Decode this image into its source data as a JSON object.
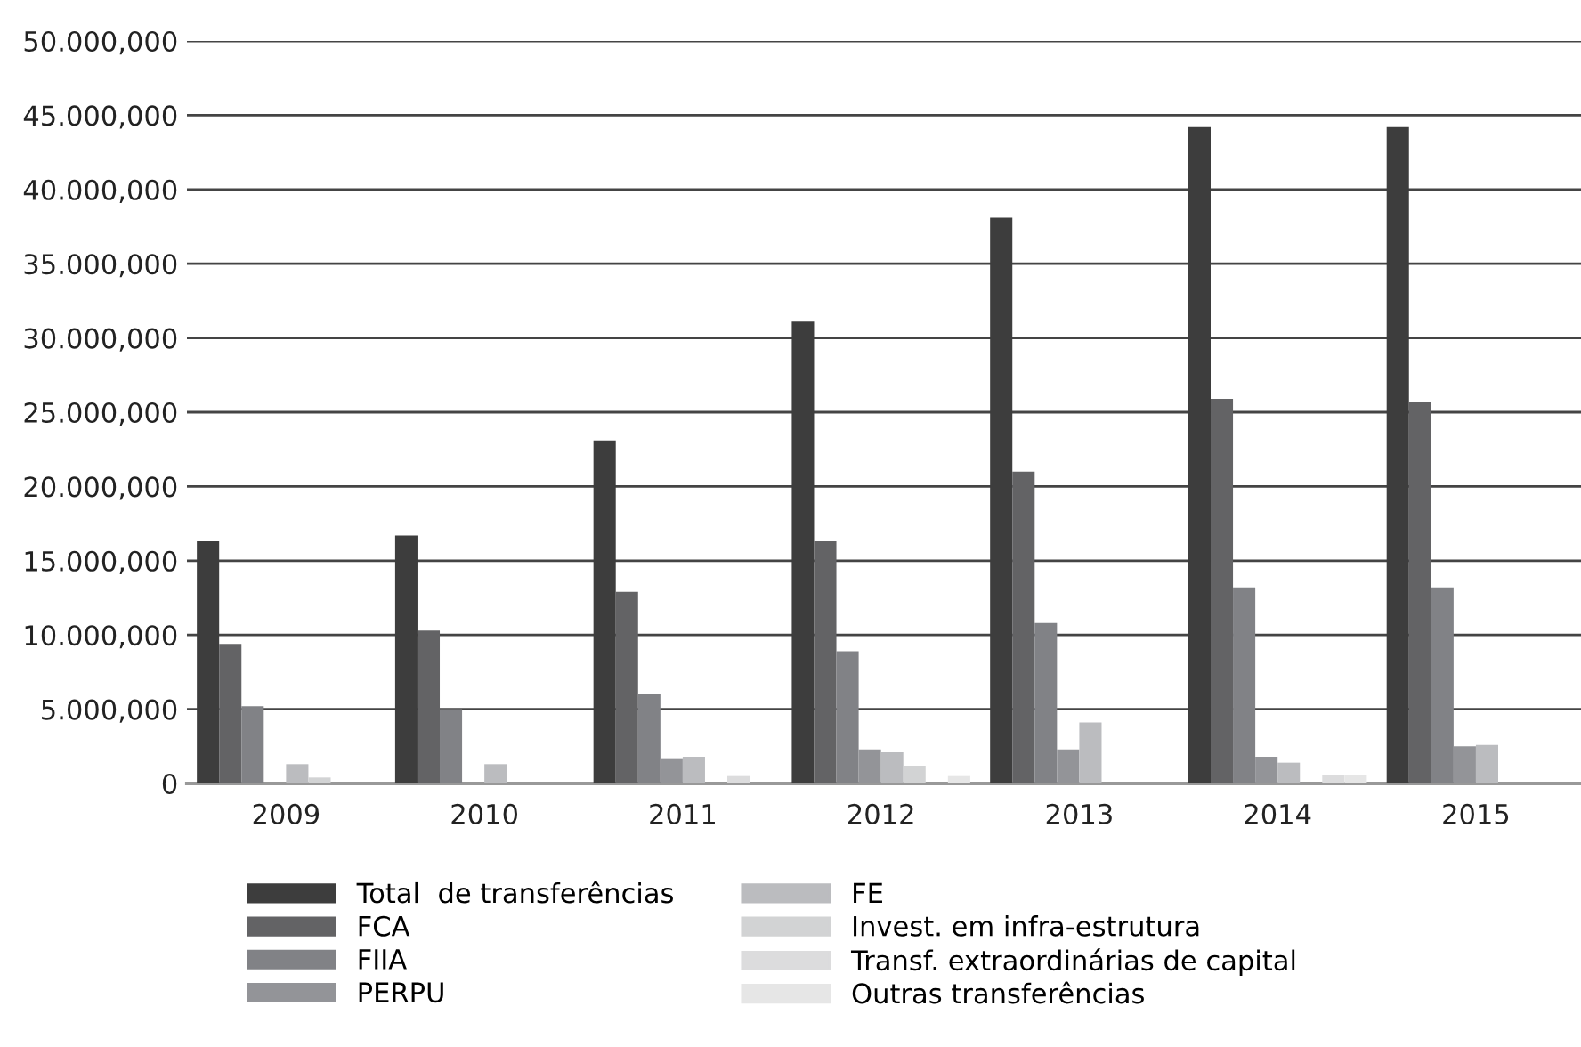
{
  "chart_data": {
    "type": "bar",
    "categories": [
      "2009",
      "2010",
      "2011",
      "2012",
      "2013",
      "2014",
      "2015"
    ],
    "series": [
      {
        "name": "Total  de transferências",
        "color": "#3d3d3d",
        "values": [
          16300,
          16700,
          23100,
          31100,
          38100,
          44200,
          44200
        ]
      },
      {
        "name": "FCA",
        "color": "#636365",
        "values": [
          9400,
          10300,
          12900,
          16300,
          21000,
          25900,
          25700
        ]
      },
      {
        "name": "FIIA",
        "color": "#818286",
        "values": [
          5200,
          5000,
          6000,
          8900,
          10800,
          13200,
          13200
        ]
      },
      {
        "name": "PERPU",
        "color": "#939498",
        "values": [
          0,
          0,
          1700,
          2300,
          2300,
          1800,
          2500
        ]
      },
      {
        "name": "FE",
        "color": "#bbbcbf",
        "values": [
          1300,
          1300,
          1800,
          2100,
          4100,
          1400,
          2600
        ]
      },
      {
        "name": "Invest. em infra-estrutura",
        "color": "#d2d3d4",
        "values": [
          400,
          0,
          0,
          1200,
          0,
          0,
          null
        ]
      },
      {
        "name": "Transf. extraordinárias de capital",
        "color": "#dcdcdd",
        "values": [
          0,
          0,
          500,
          0,
          0,
          600,
          null
        ]
      },
      {
        "name": "Outras transferências",
        "color": "#e6e6e6",
        "values": [
          0,
          0,
          0,
          500,
          0,
          600,
          null
        ]
      }
    ],
    "ylim": [
      0,
      50000
    ],
    "yticks": [
      0,
      {
        "value": 5000,
        "label": "5.000,000"
      },
      {
        "value": 10000,
        "label": "10.000,000"
      },
      {
        "value": 15000,
        "label": "15.000,000"
      },
      {
        "value": 20000,
        "label": "20.000,000"
      },
      {
        "value": 25000,
        "label": "25.000,000"
      },
      {
        "value": 30000,
        "label": "30.000,000"
      },
      {
        "value": 35000,
        "label": "35.000,000"
      },
      {
        "value": 40000,
        "label": "40.000,000"
      },
      {
        "value": 45000,
        "label": "45.000,000"
      },
      {
        "value": 50000,
        "label": "50.000,000"
      }
    ],
    "grid": "y",
    "legend": "bottom"
  }
}
